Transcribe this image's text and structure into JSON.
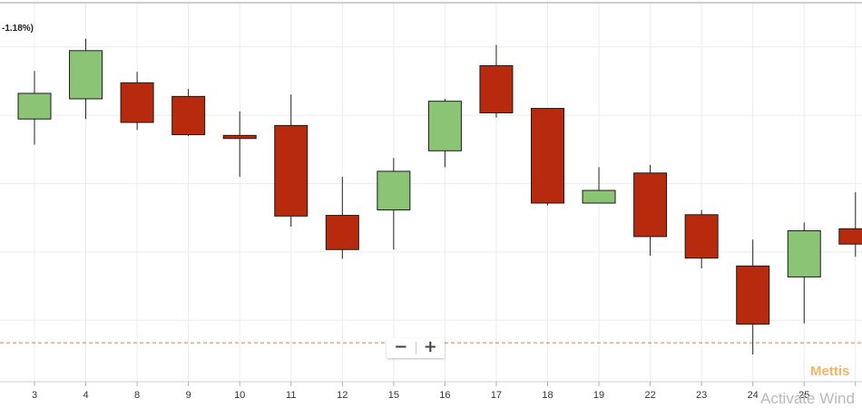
{
  "change_label": "-1.18%)",
  "zoom": {
    "minus_label": "−",
    "plus_label": "+"
  },
  "watermark": "Mettis",
  "os_watermark": "Activate Wind",
  "colors": {
    "up": "#8cc475",
    "down": "#b82a0d",
    "wick": "#222222",
    "grid": "#ececec",
    "reference_line": "#e0784f"
  },
  "chart_data": {
    "type": "candlestick",
    "title": "",
    "xlabel": "",
    "ylabel": "",
    "ylim": [
      0,
      100
    ],
    "grid": true,
    "gridlines": [
      10,
      30,
      50,
      70,
      90
    ],
    "reference_line": 3.4,
    "categories": [
      "3",
      "4",
      "8",
      "9",
      "10",
      "11",
      "12",
      "15",
      "16",
      "17",
      "18",
      "19",
      "22",
      "23",
      "24",
      "25",
      ""
    ],
    "candles": [
      {
        "open": 68.9,
        "high": 83.0,
        "low": 61.4,
        "close": 76.4
      },
      {
        "open": 74.8,
        "high": 92.4,
        "low": 68.9,
        "close": 88.9
      },
      {
        "open": 79.5,
        "high": 82.7,
        "low": 65.7,
        "close": 67.9
      },
      {
        "open": 75.5,
        "high": 77.7,
        "low": 63.9,
        "close": 64.3
      },
      {
        "open": 64.1,
        "high": 71.1,
        "low": 52.0,
        "close": 63.2
      },
      {
        "open": 67.0,
        "high": 76.1,
        "low": 37.4,
        "close": 40.5
      },
      {
        "open": 40.7,
        "high": 52.0,
        "low": 28.0,
        "close": 30.7
      },
      {
        "open": 42.3,
        "high": 57.5,
        "low": 30.7,
        "close": 53.6
      },
      {
        "open": 59.6,
        "high": 74.8,
        "low": 54.8,
        "close": 74.1
      },
      {
        "open": 84.5,
        "high": 90.6,
        "low": 69.3,
        "close": 70.7
      },
      {
        "open": 72.0,
        "high": 72.0,
        "low": 43.6,
        "close": 44.3
      },
      {
        "open": 44.3,
        "high": 54.8,
        "low": 44.3,
        "close": 48.0
      },
      {
        "open": 53.1,
        "high": 55.5,
        "low": 28.9,
        "close": 34.5
      },
      {
        "open": 40.9,
        "high": 42.3,
        "low": 25.2,
        "close": 28.2
      },
      {
        "open": 25.9,
        "high": 33.6,
        "low": 0.0,
        "close": 8.9
      },
      {
        "open": 22.7,
        "high": 38.6,
        "low": 9.1,
        "close": 36.2
      },
      {
        "open": 36.8,
        "high": 47.5,
        "low": 28.6,
        "close": 32.3
      }
    ]
  }
}
